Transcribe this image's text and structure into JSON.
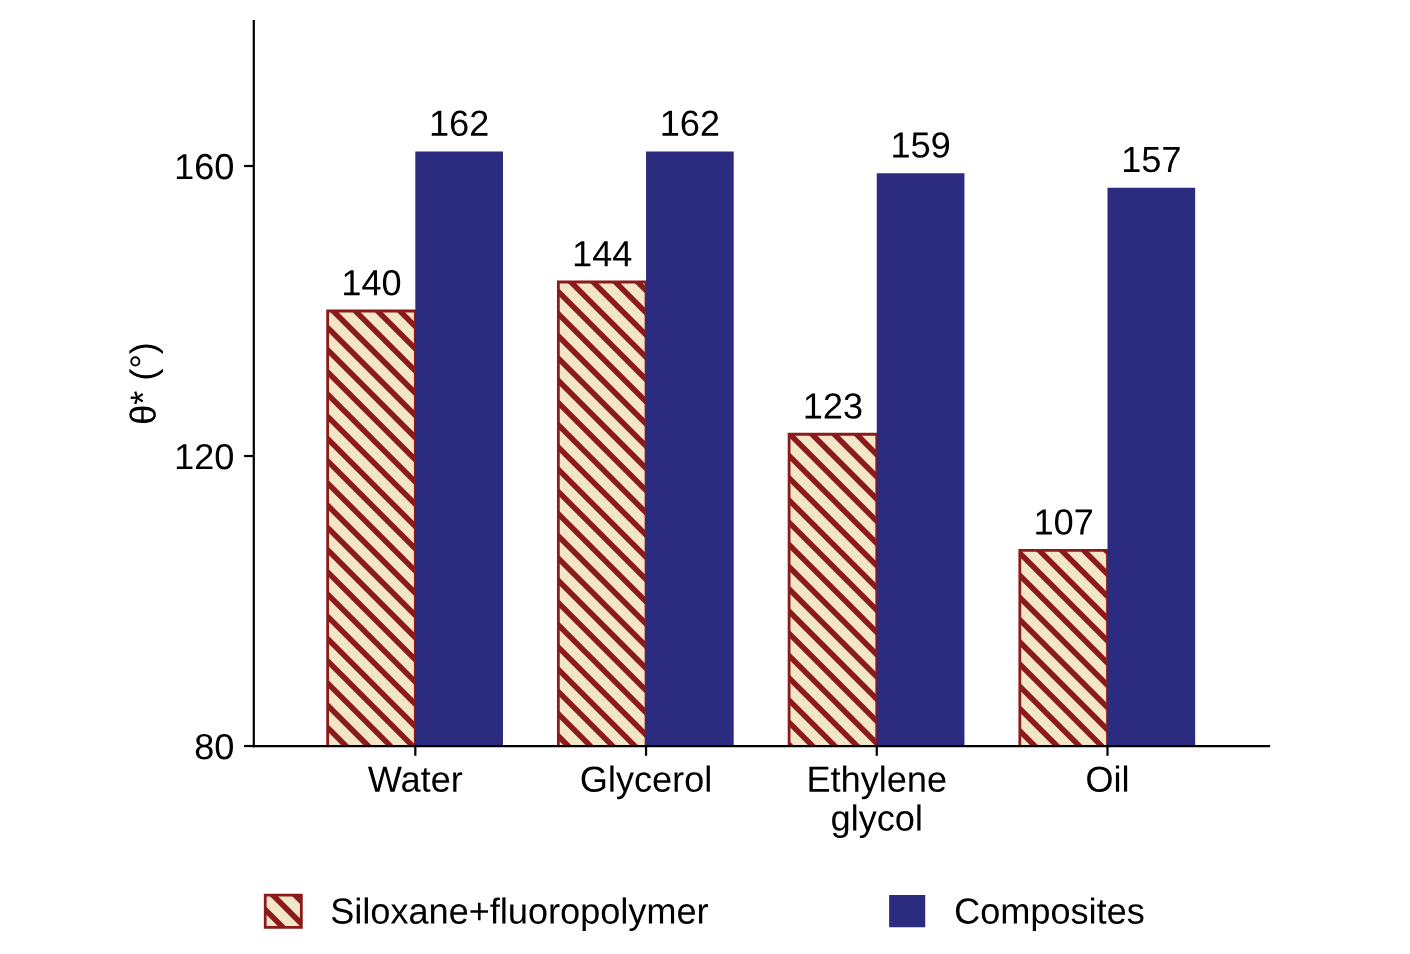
{
  "chart_data": {
    "type": "bar",
    "ylabel": "θ* (°)",
    "categories": [
      "Water",
      "Glycerol",
      "Ethylene\nglycol",
      "Oil"
    ],
    "series": [
      {
        "name": "Siloxane+fluoropolymer",
        "color": "#8b1a1a",
        "values": [
          140,
          144,
          123,
          107
        ]
      },
      {
        "name": "Composites",
        "color": "#2b2b7f",
        "values": [
          162,
          162,
          159,
          157
        ]
      }
    ],
    "ylim": [
      80,
      180
    ],
    "yticks": [
      80,
      120,
      160
    ],
    "data_labels": true,
    "grid": false,
    "legend": "bottom"
  }
}
